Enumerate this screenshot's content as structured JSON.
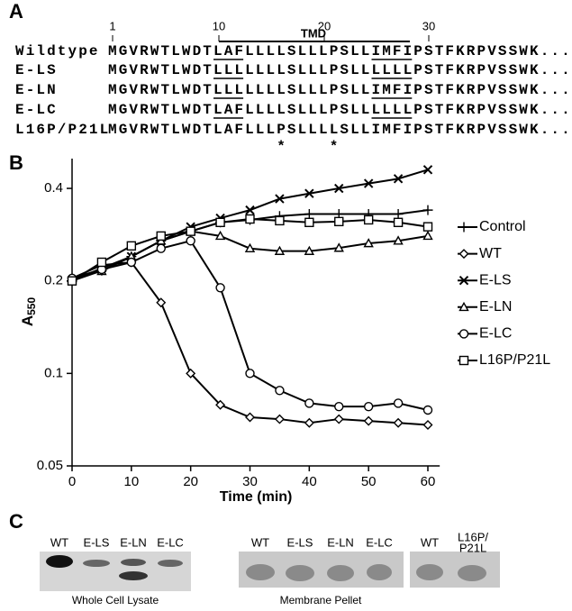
{
  "panels": [
    "A",
    "B",
    "C"
  ],
  "alignment": {
    "ruler": [
      "1",
      "10",
      "20",
      "30"
    ],
    "region_label": "TMD",
    "rows": [
      {
        "label": "Wildtype",
        "parts": [
          "M",
          "G",
          "VRWTLWDT",
          "LAF",
          "LLLLSLLLPSLL",
          "IMFI",
          "PSTFKRPVSSWK..."
        ],
        "underline": true
      },
      {
        "label": "E-LS",
        "parts": [
          "M",
          "G",
          "VRWTLWDT",
          "LLL",
          "LLLLSLLLPSLL",
          "LLLL",
          "PSTFKRPVSSWK..."
        ],
        "underline": true
      },
      {
        "label": "E-LN",
        "parts": [
          "M",
          "G",
          "VRWTLWDT",
          "LLL",
          "LLLLSLLLPSLL",
          "IMFI",
          "PSTFKRPVSSWK..."
        ],
        "underline": true
      },
      {
        "label": "E-LC",
        "parts": [
          "M",
          "G",
          "VRWTLWDT",
          "LAF",
          "LLLLSLLLPSLL",
          "LLLL",
          "PSTFKRPVSSWK..."
        ],
        "underline": true
      },
      {
        "label": "L16P/P21L",
        "parts": [
          "M",
          "G",
          "VRWTLWDT",
          "LAF",
          "LLLPSLLLLSLL",
          "IMFI",
          "PSTFKRPVSSWK..."
        ],
        "underline": false
      }
    ],
    "asterisks": [
      "*",
      "*"
    ]
  },
  "chart_data": {
    "type": "line",
    "x_label": "Time (min)",
    "y_label": "A",
    "y_label_sub": "550",
    "log_y": true,
    "x": [
      0,
      5,
      10,
      15,
      20,
      25,
      30,
      35,
      40,
      45,
      50,
      55,
      60
    ],
    "xlim": [
      0,
      62
    ],
    "xticks": [
      0,
      10,
      20,
      30,
      40,
      50,
      60
    ],
    "ylim": [
      0.05,
      0.5
    ],
    "yticks": [
      0.05,
      0.1,
      0.2,
      0.4
    ],
    "legend": "right",
    "series": [
      {
        "name": "Control",
        "color": "#000000",
        "marker": "plus",
        "values": [
          0.2,
          0.216,
          0.24,
          0.27,
          0.29,
          0.31,
          0.316,
          0.325,
          0.33,
          0.33,
          0.33,
          0.33,
          0.34
        ]
      },
      {
        "name": "WT",
        "color": "#000000",
        "marker": "diamond",
        "values": [
          0.204,
          0.225,
          0.23,
          0.17,
          0.1,
          0.079,
          0.072,
          0.071,
          0.069,
          0.071,
          0.07,
          0.069,
          0.068
        ]
      },
      {
        "name": "E-LS",
        "color": "#000000",
        "marker": "x",
        "values": [
          0.2,
          0.22,
          0.24,
          0.27,
          0.3,
          0.32,
          0.34,
          0.37,
          0.385,
          0.4,
          0.415,
          0.43,
          0.46
        ]
      },
      {
        "name": "E-LN",
        "color": "#000000",
        "marker": "triangle",
        "values": [
          0.204,
          0.215,
          0.24,
          0.27,
          0.29,
          0.28,
          0.255,
          0.25,
          0.25,
          0.256,
          0.265,
          0.27,
          0.28
        ]
      },
      {
        "name": "E-LC",
        "color": "#000000",
        "marker": "circle",
        "values": [
          0.204,
          0.218,
          0.23,
          0.255,
          0.27,
          0.19,
          0.1,
          0.088,
          0.08,
          0.078,
          0.078,
          0.08,
          0.076
        ]
      },
      {
        "name": "L16P/P21L",
        "color": "#000000",
        "marker": "square",
        "values": [
          0.2,
          0.23,
          0.26,
          0.28,
          0.29,
          0.31,
          0.318,
          0.314,
          0.31,
          0.312,
          0.316,
          0.31,
          0.3
        ]
      }
    ]
  },
  "blots": {
    "lysate": {
      "lanes": [
        "WT",
        "E-LS",
        "E-LN",
        "E-LC"
      ],
      "caption": "Whole Cell Lysate"
    },
    "pellet": {
      "lanes": [
        "WT",
        "E-LS",
        "E-LN",
        "E-LC",
        "WT",
        "L16P/",
        "P21L"
      ],
      "caption": "Membrane Pellet"
    }
  }
}
